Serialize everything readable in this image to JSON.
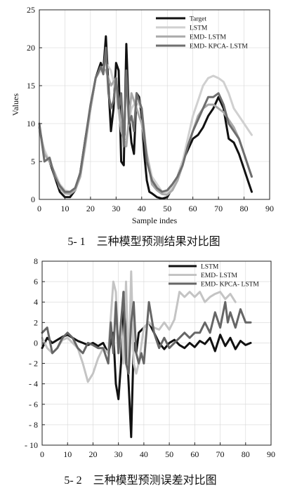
{
  "chart_data": [
    {
      "type": "line",
      "xlabel": "Sample indes",
      "ylabel": "Values",
      "xlim": [
        0,
        90
      ],
      "ylim": [
        0,
        25
      ],
      "xticks": [
        "0",
        "10",
        "20",
        "30",
        "40",
        "50",
        "60",
        "70",
        "80",
        "90"
      ],
      "yticks": [
        "0",
        "5",
        "10",
        "15",
        "20",
        "25"
      ],
      "grid": true,
      "legend_position": "top-right",
      "caption": "5- 1　三种模型预测结果对比图",
      "series": [
        {
          "name": "Target",
          "color": "#111111",
          "x": [
            0,
            2,
            4,
            6,
            8,
            10,
            12,
            14,
            16,
            18,
            20,
            22,
            24,
            25,
            26,
            27,
            28,
            29,
            30,
            31,
            32,
            33,
            34,
            35,
            36,
            37,
            38,
            39,
            40,
            41,
            42,
            43,
            44,
            46,
            48,
            50,
            52,
            54,
            56,
            58,
            60,
            62,
            64,
            66,
            68,
            70,
            72,
            73,
            74,
            76,
            78,
            80,
            82,
            83
          ],
          "y": [
            9.5,
            6,
            5,
            3,
            1,
            0.3,
            0.3,
            1.2,
            3.5,
            8,
            12,
            16,
            18,
            17,
            21.5,
            15,
            9,
            12,
            18,
            17,
            5,
            4.5,
            20.5,
            11,
            7.5,
            6,
            14,
            13.5,
            11,
            6,
            2.5,
            1,
            0.8,
            0.3,
            0.1,
            0.3,
            1.5,
            3,
            5,
            6.5,
            8,
            8.5,
            9.5,
            11,
            12,
            13.5,
            12,
            10,
            8,
            7.5,
            6,
            4,
            2,
            1
          ]
        },
        {
          "name": "LSTM",
          "color": "#d0d0d0",
          "x": [
            0,
            2,
            4,
            6,
            8,
            10,
            12,
            14,
            16,
            18,
            20,
            22,
            24,
            26,
            28,
            30,
            32,
            34,
            36,
            38,
            40,
            42,
            44,
            46,
            48,
            50,
            52,
            54,
            56,
            58,
            60,
            62,
            64,
            66,
            68,
            70,
            72,
            74,
            76,
            78,
            80,
            82,
            83
          ],
          "y": [
            9,
            6.5,
            5,
            3.5,
            2,
            1.2,
            1,
            1.3,
            3,
            7,
            12,
            16,
            17,
            18,
            17,
            14,
            9,
            8,
            12,
            13,
            12,
            6,
            3,
            2,
            1,
            0.9,
            1.5,
            3,
            5,
            8,
            11,
            13,
            15,
            16,
            16.3,
            16,
            15.5,
            14,
            12,
            11,
            10,
            9,
            8.5
          ]
        },
        {
          "name": "EMD- LSTM",
          "color": "#a9a9a9",
          "x": [
            0,
            2,
            4,
            6,
            8,
            10,
            12,
            14,
            16,
            18,
            20,
            22,
            24,
            26,
            28,
            30,
            32,
            34,
            36,
            38,
            40,
            42,
            44,
            46,
            48,
            50,
            52,
            54,
            56,
            58,
            60,
            62,
            64,
            66,
            68,
            70,
            72,
            74,
            76,
            78,
            80,
            82,
            83
          ],
          "y": [
            9.5,
            6,
            5,
            3.5,
            1.5,
            0.8,
            0.7,
            1.2,
            3,
            7.5,
            12,
            16,
            17.5,
            17,
            15,
            16,
            9,
            7,
            14,
            12,
            10,
            6,
            2,
            1.2,
            0.7,
            0.6,
            1.2,
            2.5,
            4.5,
            7,
            9,
            11,
            12,
            12.5,
            12.5,
            12,
            11.5,
            10.5,
            9.5,
            8,
            6,
            4,
            3
          ]
        },
        {
          "name": "EMD- KPCA- LSTM",
          "color": "#6e6e6e",
          "x": [
            0,
            2,
            4,
            6,
            8,
            10,
            12,
            14,
            16,
            18,
            20,
            22,
            24,
            25,
            26,
            27,
            28,
            29,
            30,
            31,
            32,
            33,
            34,
            35,
            36,
            37,
            38,
            39,
            40,
            42,
            44,
            46,
            48,
            50,
            52,
            54,
            56,
            58,
            60,
            62,
            64,
            66,
            68,
            70,
            72,
            74,
            76,
            78,
            80,
            82,
            83
          ],
          "y": [
            10,
            5,
            5.5,
            3,
            1.8,
            1,
            1,
            1.5,
            3.5,
            8,
            12.5,
            16,
            17.5,
            16.5,
            20,
            14,
            12,
            13,
            16,
            12,
            14,
            7,
            17,
            10,
            11,
            9,
            14,
            13,
            12,
            5,
            2.5,
            1.5,
            1,
            1.2,
            2,
            3,
            4.5,
            7,
            9,
            10.5,
            12,
            13.5,
            13.5,
            14,
            12.5,
            10,
            9,
            8,
            6,
            4,
            3
          ]
        }
      ]
    },
    {
      "type": "line",
      "xlim": [
        0,
        90
      ],
      "ylim": [
        -10,
        8
      ],
      "xticks": [
        "0",
        "10",
        "20",
        "30",
        "40",
        "50",
        "60",
        "70",
        "80",
        "90"
      ],
      "yticks": [
        "- 10",
        "- 8",
        "- 6",
        "- 4",
        "- 2",
        "0",
        "2",
        "4",
        "6",
        "8"
      ],
      "grid": true,
      "legend_position": "top-right",
      "caption": "5- 2　三种模型预测误差对比图",
      "series": [
        {
          "name": "LSTM",
          "color": "#111111",
          "x": [
            0,
            2,
            4,
            6,
            8,
            10,
            12,
            14,
            16,
            18,
            20,
            22,
            24,
            26,
            28,
            29,
            30,
            31,
            32,
            33,
            34,
            35,
            36,
            37,
            38,
            40,
            42,
            44,
            46,
            48,
            50,
            52,
            54,
            56,
            58,
            60,
            62,
            64,
            66,
            68,
            70,
            72,
            74,
            76,
            78,
            80,
            82
          ],
          "y": [
            -0.5,
            0.5,
            0,
            0.3,
            0.6,
            0.8,
            0.5,
            0.2,
            0,
            -0.2,
            0,
            -0.3,
            0,
            -1,
            1,
            -4,
            -5.5,
            -2,
            5,
            1,
            -4,
            -9.2,
            0,
            -1,
            1,
            1.5,
            2,
            1,
            0,
            -0.6,
            0,
            0.3,
            -0.2,
            -0.5,
            0,
            -0.4,
            0.2,
            -0.1,
            0.5,
            -0.8,
            0.8,
            -0.3,
            0.5,
            -0.6,
            0.2,
            -0.2,
            0
          ]
        },
        {
          "name": "EMD- LSTM",
          "color": "#c4c4c4",
          "x": [
            0,
            2,
            4,
            6,
            8,
            10,
            12,
            14,
            16,
            18,
            20,
            22,
            24,
            26,
            28,
            29,
            30,
            31,
            32,
            33,
            34,
            35,
            36,
            37,
            38,
            40,
            42,
            44,
            46,
            48,
            50,
            52,
            54,
            56,
            58,
            60,
            62,
            64,
            66,
            68,
            70,
            72,
            74,
            76
          ],
          "y": [
            0.5,
            -0.5,
            -1,
            -0.5,
            0.3,
            0.5,
            0,
            -0.5,
            -2,
            -3.8,
            -3,
            -1.5,
            -0.5,
            -1,
            6,
            5,
            -1,
            2,
            -2,
            6,
            -3,
            7,
            -2,
            -3,
            -2,
            1.5,
            2,
            1.5,
            1.3,
            2,
            1.3,
            2.3,
            5,
            4.5,
            5,
            4.5,
            5,
            4,
            4.5,
            4.8,
            5,
            4.3,
            4.8,
            4
          ]
        },
        {
          "name": "EMD- KPCA- LSTM",
          "color": "#666666",
          "x": [
            0,
            2,
            4,
            6,
            8,
            10,
            12,
            14,
            16,
            18,
            20,
            22,
            24,
            26,
            27,
            28,
            29,
            30,
            31,
            32,
            33,
            34,
            35,
            36,
            37,
            38,
            39,
            40,
            42,
            44,
            46,
            48,
            50,
            52,
            54,
            56,
            58,
            60,
            62,
            64,
            66,
            68,
            70,
            72,
            73,
            74,
            76,
            78,
            80,
            82
          ],
          "y": [
            1,
            1.5,
            -1,
            -0.5,
            0.5,
            1,
            0.5,
            -0.5,
            -1,
            0,
            -0.2,
            -0.5,
            -0.5,
            -2,
            2,
            -1,
            4,
            -1,
            2,
            5,
            -2,
            -3,
            2,
            4,
            -1,
            -2,
            -1,
            -2,
            4,
            1,
            -0.5,
            0.5,
            -0.5,
            0,
            0.5,
            1,
            0.5,
            1,
            1,
            2,
            1,
            3,
            1.5,
            4,
            2,
            3,
            1.5,
            3.3,
            2,
            2
          ]
        }
      ]
    }
  ]
}
